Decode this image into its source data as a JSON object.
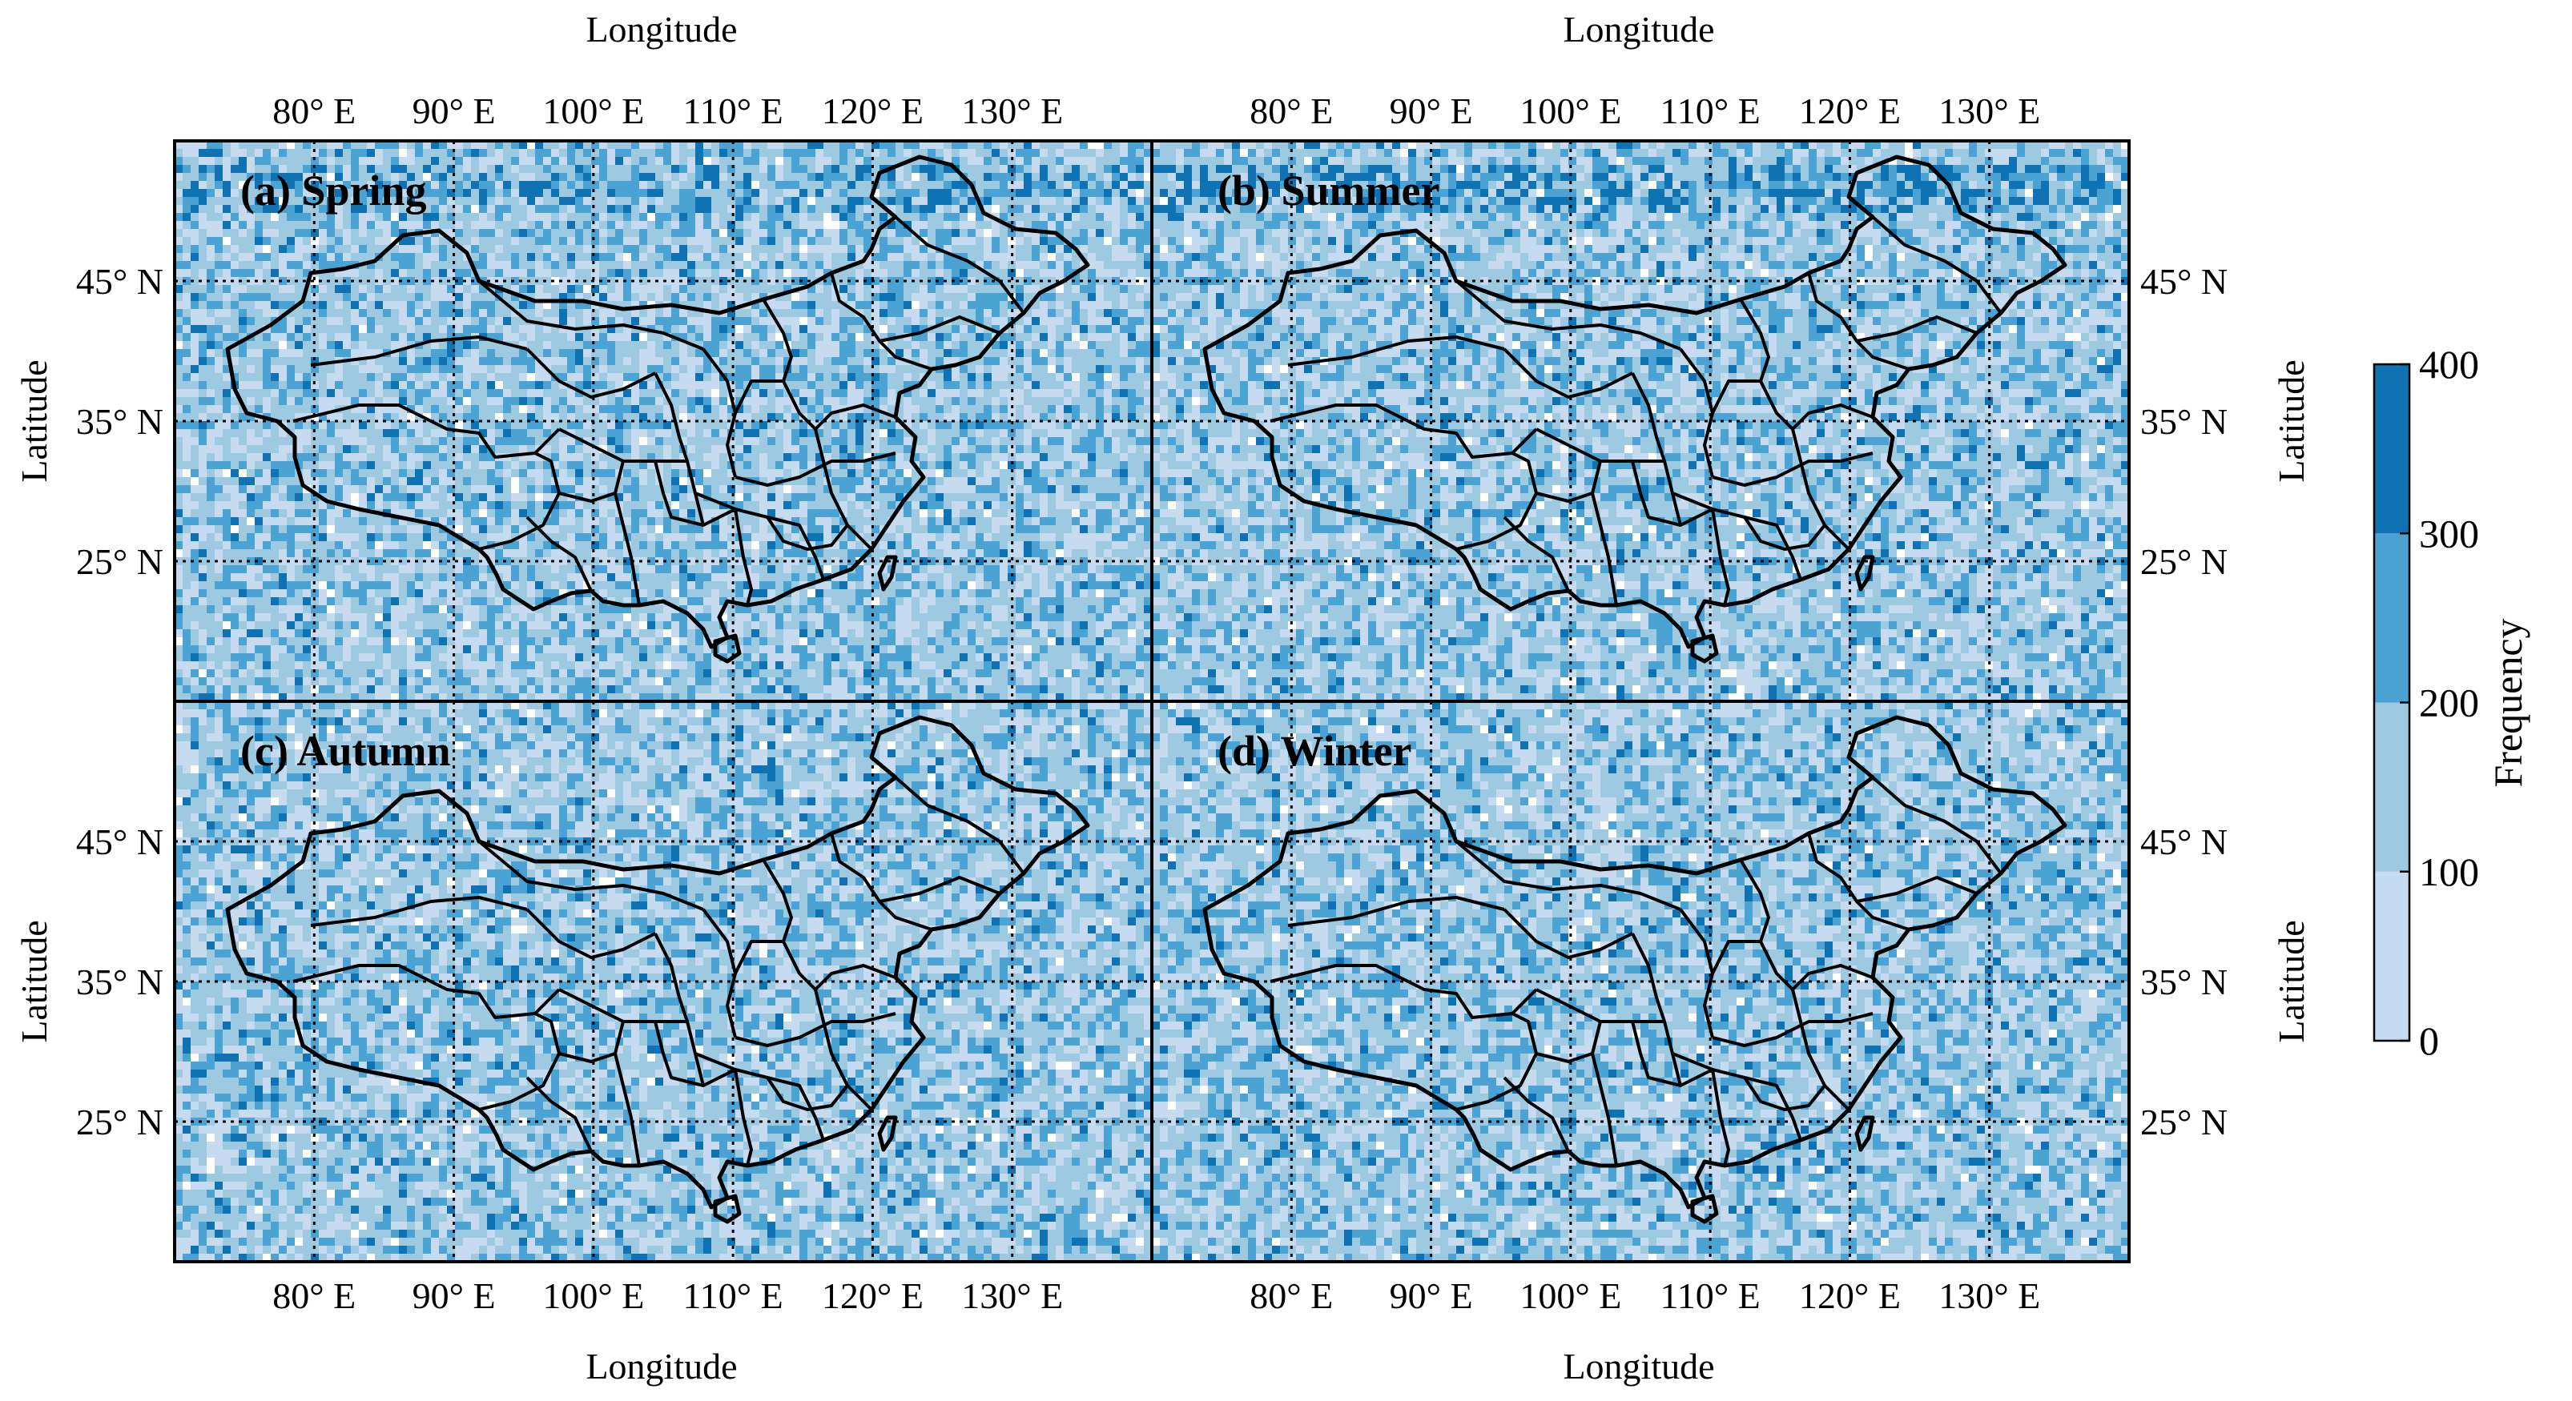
{
  "figure": {
    "x_axis_label": "Longitude",
    "y_axis_label": "Latitude",
    "lon_ticks": [
      "80° E",
      "90° E",
      "100° E",
      "110° E",
      "120° E",
      "130° E"
    ],
    "lat_ticks": [
      "45° N",
      "35° N",
      "25° N"
    ],
    "map_extent": {
      "lon": [
        70,
        140
      ],
      "lat": [
        15,
        55
      ]
    },
    "grid": "dotted graticule every 10°"
  },
  "panels": [
    {
      "label": "(a) Spring",
      "season": "Spring"
    },
    {
      "label": "(b) Summer",
      "season": "Summer"
    },
    {
      "label": "(c) Autumn",
      "season": "Autumn"
    },
    {
      "label": "(d) Winter",
      "season": "Winter"
    }
  ],
  "colorbar": {
    "label": "Frequency",
    "ticks": [
      "0",
      "100",
      "200",
      "300",
      "400"
    ],
    "bins": [
      {
        "range": [
          0,
          100
        ],
        "color": "#c6dbef"
      },
      {
        "range": [
          100,
          200
        ],
        "color": "#9ecae1"
      },
      {
        "range": [
          200,
          300
        ],
        "color": "#4ba3d3"
      },
      {
        "range": [
          300,
          400
        ],
        "color": "#0e72b3"
      }
    ]
  },
  "colors": {
    "border": "#000000",
    "graticule": "#000000"
  }
}
